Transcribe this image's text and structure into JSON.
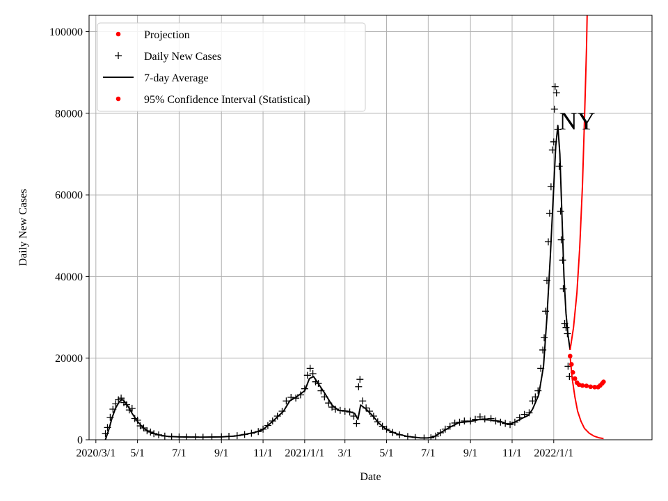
{
  "chart_data": {
    "type": "line",
    "title": "",
    "xlabel": "Date",
    "ylabel": "Daily New Cases",
    "annotation": "NY",
    "grid": true,
    "legend_position": "top-left",
    "xlim": [
      "2020-02-20",
      "2022-05-25"
    ],
    "ylim": [
      0,
      104000
    ],
    "x_ticks": [
      {
        "date": "2020-03-01",
        "label": "2020/3/1"
      },
      {
        "date": "2020-05-01",
        "label": "5/1"
      },
      {
        "date": "2020-07-01",
        "label": "7/1"
      },
      {
        "date": "2020-09-01",
        "label": "9/1"
      },
      {
        "date": "2020-11-01",
        "label": "11/1"
      },
      {
        "date": "2021-01-01",
        "label": "2021/1/1"
      },
      {
        "date": "2021-03-01",
        "label": "3/1"
      },
      {
        "date": "2021-05-01",
        "label": "5/1"
      },
      {
        "date": "2021-07-01",
        "label": "7/1"
      },
      {
        "date": "2021-09-01",
        "label": "9/1"
      },
      {
        "date": "2021-11-01",
        "label": "11/1"
      },
      {
        "date": "2022-01-01",
        "label": "2022/1/1"
      }
    ],
    "y_ticks": [
      0,
      20000,
      40000,
      60000,
      80000,
      100000
    ],
    "legend": [
      {
        "label": "Projection",
        "marker": "dot",
        "color": "#ff0000"
      },
      {
        "label": "Daily New Cases",
        "marker": "plus",
        "color": "#000000"
      },
      {
        "label": "7-day Average",
        "marker": "line",
        "color": "#000000"
      },
      {
        "label": "95% Confidence Interval (Statistical)",
        "marker": "dot",
        "color": "#ff0000"
      }
    ],
    "series": [
      {
        "name": "7-day Average",
        "style": "line",
        "color": "#000000",
        "points": [
          [
            "2020-03-15",
            0
          ],
          [
            "2020-03-20",
            2500
          ],
          [
            "2020-03-25",
            5500
          ],
          [
            "2020-03-30",
            7800
          ],
          [
            "2020-04-04",
            9200
          ],
          [
            "2020-04-08",
            9900
          ],
          [
            "2020-04-12",
            9400
          ],
          [
            "2020-04-17",
            8200
          ],
          [
            "2020-04-24",
            6200
          ],
          [
            "2020-05-01",
            4500
          ],
          [
            "2020-05-10",
            2800
          ],
          [
            "2020-05-20",
            1800
          ],
          [
            "2020-06-01",
            1200
          ],
          [
            "2020-06-15",
            800
          ],
          [
            "2020-07-01",
            700
          ],
          [
            "2020-08-01",
            650
          ],
          [
            "2020-09-01",
            700
          ],
          [
            "2020-09-20",
            900
          ],
          [
            "2020-10-05",
            1300
          ],
          [
            "2020-10-20",
            1800
          ],
          [
            "2020-11-01",
            2500
          ],
          [
            "2020-11-15",
            4500
          ],
          [
            "2020-12-01",
            7000
          ],
          [
            "2020-12-10",
            9500
          ],
          [
            "2020-12-20",
            10500
          ],
          [
            "2021-01-01",
            12000
          ],
          [
            "2021-01-08",
            15000
          ],
          [
            "2021-01-14",
            15500
          ],
          [
            "2021-01-20",
            14000
          ],
          [
            "2021-01-30",
            11500
          ],
          [
            "2021-02-10",
            8500
          ],
          [
            "2021-02-20",
            7200
          ],
          [
            "2021-03-05",
            7000
          ],
          [
            "2021-03-15",
            6500
          ],
          [
            "2021-03-20",
            5000
          ],
          [
            "2021-03-24",
            8500
          ],
          [
            "2021-04-01",
            7500
          ],
          [
            "2021-04-10",
            6000
          ],
          [
            "2021-04-20",
            4000
          ],
          [
            "2021-05-01",
            2500
          ],
          [
            "2021-05-15",
            1500
          ],
          [
            "2021-06-01",
            800
          ],
          [
            "2021-06-20",
            450
          ],
          [
            "2021-07-01",
            450
          ],
          [
            "2021-07-10",
            800
          ],
          [
            "2021-07-20",
            1800
          ],
          [
            "2021-08-01",
            3000
          ],
          [
            "2021-08-15",
            4200
          ],
          [
            "2021-09-01",
            4500
          ],
          [
            "2021-09-15",
            5000
          ],
          [
            "2021-10-01",
            4800
          ],
          [
            "2021-10-15",
            4500
          ],
          [
            "2021-10-25",
            3800
          ],
          [
            "2021-11-01",
            4000
          ],
          [
            "2021-11-15",
            5200
          ],
          [
            "2021-11-25",
            6000
          ],
          [
            "2021-12-01",
            7500
          ],
          [
            "2021-12-10",
            11000
          ],
          [
            "2021-12-17",
            18000
          ],
          [
            "2021-12-22",
            30000
          ],
          [
            "2021-12-27",
            45000
          ],
          [
            "2022-01-01",
            62000
          ],
          [
            "2022-01-04",
            72000
          ],
          [
            "2022-01-07",
            77000
          ],
          [
            "2022-01-10",
            70000
          ],
          [
            "2022-01-13",
            55000
          ],
          [
            "2022-01-16",
            40000
          ],
          [
            "2022-01-19",
            31000
          ],
          [
            "2022-01-22",
            25500
          ],
          [
            "2022-01-25",
            22000
          ]
        ]
      },
      {
        "name": "Daily New Cases",
        "style": "plus",
        "color": "#000000",
        "points": [
          [
            "2020-03-15",
            1500
          ],
          [
            "2020-03-18",
            3000
          ],
          [
            "2020-03-22",
            5500
          ],
          [
            "2020-03-26",
            7500
          ],
          [
            "2020-03-30",
            8800
          ],
          [
            "2020-04-03",
            9800
          ],
          [
            "2020-04-07",
            10200
          ],
          [
            "2020-04-11",
            9100
          ],
          [
            "2020-04-15",
            8600
          ],
          [
            "2020-04-19",
            7300
          ],
          [
            "2020-04-23",
            7700
          ],
          [
            "2020-04-27",
            5200
          ],
          [
            "2020-05-01",
            4800
          ],
          [
            "2020-05-05",
            3400
          ],
          [
            "2020-05-10",
            2900
          ],
          [
            "2020-05-15",
            2200
          ],
          [
            "2020-05-20",
            1900
          ],
          [
            "2020-05-25",
            1500
          ],
          [
            "2020-06-01",
            1200
          ],
          [
            "2020-06-10",
            900
          ],
          [
            "2020-06-20",
            750
          ],
          [
            "2020-07-01",
            700
          ],
          [
            "2020-07-12",
            650
          ],
          [
            "2020-07-25",
            700
          ],
          [
            "2020-08-05",
            620
          ],
          [
            "2020-08-18",
            680
          ],
          [
            "2020-09-01",
            750
          ],
          [
            "2020-09-12",
            850
          ],
          [
            "2020-09-24",
            1000
          ],
          [
            "2020-10-05",
            1300
          ],
          [
            "2020-10-15",
            1600
          ],
          [
            "2020-10-25",
            2000
          ],
          [
            "2020-11-01",
            2600
          ],
          [
            "2020-11-08",
            3500
          ],
          [
            "2020-11-15",
            4600
          ],
          [
            "2020-11-22",
            5800
          ],
          [
            "2020-11-29",
            7000
          ],
          [
            "2020-12-05",
            9500
          ],
          [
            "2020-12-12",
            10400
          ],
          [
            "2020-12-19",
            10200
          ],
          [
            "2020-12-26",
            11000
          ],
          [
            "2021-01-01",
            12500
          ],
          [
            "2021-01-05",
            15800
          ],
          [
            "2021-01-09",
            17500
          ],
          [
            "2021-01-13",
            16200
          ],
          [
            "2021-01-17",
            14200
          ],
          [
            "2021-01-21",
            13800
          ],
          [
            "2021-01-25",
            12000
          ],
          [
            "2021-01-30",
            10500
          ],
          [
            "2021-02-05",
            9000
          ],
          [
            "2021-02-10",
            8000
          ],
          [
            "2021-02-15",
            7500
          ],
          [
            "2021-02-22",
            7200
          ],
          [
            "2021-03-01",
            7000
          ],
          [
            "2021-03-08",
            6800
          ],
          [
            "2021-03-14",
            5800
          ],
          [
            "2021-03-18",
            4000
          ],
          [
            "2021-03-21",
            13000
          ],
          [
            "2021-03-23",
            14800
          ],
          [
            "2021-03-27",
            9500
          ],
          [
            "2021-04-01",
            7800
          ],
          [
            "2021-04-06",
            7000
          ],
          [
            "2021-04-12",
            5800
          ],
          [
            "2021-04-18",
            4400
          ],
          [
            "2021-04-25",
            3300
          ],
          [
            "2021-05-01",
            2600
          ],
          [
            "2021-05-10",
            1800
          ],
          [
            "2021-05-20",
            1200
          ],
          [
            "2021-06-01",
            800
          ],
          [
            "2021-06-12",
            550
          ],
          [
            "2021-06-25",
            420
          ],
          [
            "2021-07-05",
            500
          ],
          [
            "2021-07-12",
            900
          ],
          [
            "2021-07-19",
            1700
          ],
          [
            "2021-07-26",
            2600
          ],
          [
            "2021-08-02",
            3300
          ],
          [
            "2021-08-09",
            4100
          ],
          [
            "2021-08-16",
            4300
          ],
          [
            "2021-08-23",
            4600
          ],
          [
            "2021-09-01",
            4600
          ],
          [
            "2021-09-08",
            5000
          ],
          [
            "2021-09-15",
            5600
          ],
          [
            "2021-09-22",
            5100
          ],
          [
            "2021-10-01",
            5200
          ],
          [
            "2021-10-08",
            4600
          ],
          [
            "2021-10-15",
            4300
          ],
          [
            "2021-10-22",
            4000
          ],
          [
            "2021-10-29",
            3700
          ],
          [
            "2021-11-05",
            4300
          ],
          [
            "2021-11-12",
            5400
          ],
          [
            "2021-11-19",
            6200
          ],
          [
            "2021-11-26",
            6600
          ],
          [
            "2021-12-01",
            9500
          ],
          [
            "2021-12-05",
            10500
          ],
          [
            "2021-12-09",
            12000
          ],
          [
            "2021-12-13",
            17500
          ],
          [
            "2021-12-16",
            22000
          ],
          [
            "2021-12-18",
            25000
          ],
          [
            "2021-12-20",
            31500
          ],
          [
            "2021-12-22",
            39000
          ],
          [
            "2021-12-24",
            48500
          ],
          [
            "2021-12-26",
            55500
          ],
          [
            "2021-12-28",
            62000
          ],
          [
            "2021-12-30",
            71000
          ],
          [
            "2022-01-01",
            73000
          ],
          [
            "2022-01-02",
            81000
          ],
          [
            "2022-01-03",
            86500
          ],
          [
            "2022-01-05",
            85000
          ],
          [
            "2022-01-07",
            76000
          ],
          [
            "2022-01-09",
            67000
          ],
          [
            "2022-01-11",
            56000
          ],
          [
            "2022-01-12",
            49000
          ],
          [
            "2022-01-14",
            44000
          ],
          [
            "2022-01-15",
            37000
          ],
          [
            "2022-01-17",
            28500
          ],
          [
            "2022-01-19",
            27500
          ],
          [
            "2022-01-21",
            26000
          ],
          [
            "2022-01-22",
            18000
          ],
          [
            "2022-01-24",
            15500
          ]
        ]
      },
      {
        "name": "Projection",
        "style": "dot",
        "color": "#ff0000",
        "points": [
          [
            "2022-01-25",
            20500
          ],
          [
            "2022-01-27",
            18500
          ],
          [
            "2022-01-29",
            16500
          ],
          [
            "2022-02-01",
            15000
          ],
          [
            "2022-02-04",
            14000
          ],
          [
            "2022-02-07",
            13500
          ],
          [
            "2022-02-12",
            13300
          ],
          [
            "2022-02-18",
            13200
          ],
          [
            "2022-02-24",
            13000
          ],
          [
            "2022-03-02",
            12900
          ],
          [
            "2022-03-07",
            12900
          ],
          [
            "2022-03-10",
            13300
          ],
          [
            "2022-03-13",
            13800
          ],
          [
            "2022-03-15",
            14200
          ]
        ]
      },
      {
        "name": "95% Confidence Interval (Statistical)",
        "style": "line",
        "color": "#ff0000",
        "points": [
          [
            "2022-01-25",
            22000
          ],
          [
            "2022-01-30",
            27500
          ],
          [
            "2022-02-04",
            36000
          ],
          [
            "2022-02-08",
            47000
          ],
          [
            "2022-02-12",
            62000
          ],
          [
            "2022-02-15",
            78000
          ],
          [
            "2022-02-18",
            96000
          ],
          [
            "2022-02-19",
            104000
          ]
        ]
      },
      {
        "name": "95% Confidence Interval (Statistical)",
        "style": "line",
        "color": "#ff0000",
        "points": [
          [
            "2022-01-25",
            20500
          ],
          [
            "2022-01-28",
            15000
          ],
          [
            "2022-02-01",
            10500
          ],
          [
            "2022-02-05",
            7000
          ],
          [
            "2022-02-10",
            4500
          ],
          [
            "2022-02-15",
            2800
          ],
          [
            "2022-02-22",
            1600
          ],
          [
            "2022-03-01",
            900
          ],
          [
            "2022-03-08",
            500
          ],
          [
            "2022-03-15",
            300
          ]
        ]
      }
    ]
  }
}
